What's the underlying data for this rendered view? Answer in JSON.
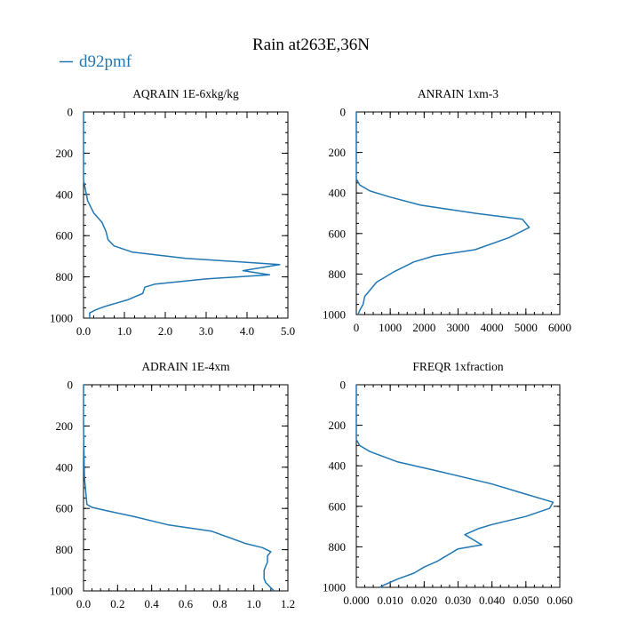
{
  "title": "Rain at263E,36N",
  "legend": {
    "label": "d92pmf",
    "color": "#1f77b4"
  },
  "colors": {
    "line": "#1f77b4",
    "axis": "#000000"
  },
  "chart_data": [
    {
      "type": "line",
      "title": "AQRAIN  1E-6xkg/kg",
      "xlim": [
        0,
        5
      ],
      "ylim": [
        1000,
        0
      ],
      "xticks": [
        0,
        1,
        2,
        3,
        4,
        5
      ],
      "xtick_labels": [
        "0.0",
        "1.0",
        "2.0",
        "3.0",
        "4.0",
        "5.0"
      ],
      "yticks": [
        0,
        200,
        400,
        600,
        800,
        1000
      ],
      "ytick_labels": [
        "0",
        "200",
        "400",
        "600",
        "800",
        "1000"
      ],
      "series": [
        {
          "name": "d92pmf",
          "points": [
            [
              0,
              0
            ],
            [
              0,
              100
            ],
            [
              0,
              250
            ],
            [
              0,
              330
            ],
            [
              0.05,
              380
            ],
            [
              0.1,
              430
            ],
            [
              0.25,
              490
            ],
            [
              0.45,
              535
            ],
            [
              0.55,
              580
            ],
            [
              0.6,
              620
            ],
            [
              0.75,
              650
            ],
            [
              1.2,
              680
            ],
            [
              2.5,
              710
            ],
            [
              4.8,
              740
            ],
            [
              3.9,
              770
            ],
            [
              4.55,
              790
            ],
            [
              3.0,
              810
            ],
            [
              1.75,
              835
            ],
            [
              1.5,
              850
            ],
            [
              1.45,
              880
            ],
            [
              1.1,
              910
            ],
            [
              0.75,
              930
            ],
            [
              0.5,
              945
            ],
            [
              0.3,
              960
            ],
            [
              0.15,
              975
            ],
            [
              0.15,
              1000
            ]
          ]
        }
      ]
    },
    {
      "type": "line",
      "title": "ANRAIN  1xm-3",
      "xlim": [
        0,
        6000
      ],
      "ylim": [
        1000,
        0
      ],
      "xticks": [
        0,
        1000,
        2000,
        3000,
        4000,
        5000,
        6000
      ],
      "xtick_labels": [
        "0",
        "1000",
        "2000",
        "3000",
        "4000",
        "5000",
        "6000"
      ],
      "yticks": [
        0,
        200,
        400,
        600,
        800,
        1000
      ],
      "ytick_labels": [
        "0",
        "200",
        "400",
        "600",
        "800",
        "1000"
      ],
      "series": [
        {
          "name": "d92pmf",
          "points": [
            [
              0,
              0
            ],
            [
              0,
              250
            ],
            [
              0,
              330
            ],
            [
              100,
              360
            ],
            [
              400,
              390
            ],
            [
              1000,
              420
            ],
            [
              1900,
              460
            ],
            [
              3500,
              500
            ],
            [
              4900,
              530
            ],
            [
              5100,
              570
            ],
            [
              4500,
              620
            ],
            [
              3500,
              680
            ],
            [
              2300,
              710
            ],
            [
              1700,
              740
            ],
            [
              1100,
              790
            ],
            [
              600,
              840
            ],
            [
              400,
              880
            ],
            [
              250,
              910
            ],
            [
              200,
              950
            ],
            [
              100,
              980
            ],
            [
              50,
              1000
            ]
          ]
        }
      ]
    },
    {
      "type": "line",
      "title": "ADRAIN  1E-4xm",
      "xlim": [
        0,
        1.2
      ],
      "ylim": [
        1000,
        0
      ],
      "xticks": [
        0,
        0.2,
        0.4,
        0.6,
        0.8,
        1.0,
        1.2
      ],
      "xtick_labels": [
        "0.0",
        "0.2",
        "0.4",
        "0.6",
        "0.8",
        "1.0",
        "1.2"
      ],
      "yticks": [
        0,
        200,
        400,
        600,
        800,
        1000
      ],
      "ytick_labels": [
        "0",
        "200",
        "400",
        "600",
        "800",
        "1000"
      ],
      "series": [
        {
          "name": "d92pmf",
          "points": [
            [
              0,
              0
            ],
            [
              0,
              200
            ],
            [
              0.005,
              450
            ],
            [
              0.02,
              580
            ],
            [
              0.05,
              595
            ],
            [
              0.13,
              610
            ],
            [
              0.3,
              640
            ],
            [
              0.5,
              680
            ],
            [
              0.75,
              710
            ],
            [
              0.95,
              770
            ],
            [
              1.05,
              790
            ],
            [
              1.1,
              810
            ],
            [
              1.08,
              830
            ],
            [
              1.08,
              860
            ],
            [
              1.06,
              900
            ],
            [
              1.06,
              940
            ],
            [
              1.07,
              960
            ],
            [
              1.1,
              985
            ],
            [
              1.12,
              1000
            ]
          ]
        }
      ]
    },
    {
      "type": "line",
      "title": "FREQR  1xfraction",
      "xlim": [
        0,
        0.06
      ],
      "ylim": [
        1000,
        0
      ],
      "xticks": [
        0,
        0.01,
        0.02,
        0.03,
        0.04,
        0.05,
        0.06
      ],
      "xtick_labels": [
        "0.000",
        "0.010",
        "0.020",
        "0.030",
        "0.040",
        "0.050",
        "0.060"
      ],
      "yticks": [
        0,
        200,
        400,
        600,
        800,
        1000
      ],
      "ytick_labels": [
        "0",
        "200",
        "400",
        "600",
        "800",
        "1000"
      ],
      "series": [
        {
          "name": "d92pmf",
          "points": [
            [
              0,
              0
            ],
            [
              0,
              270
            ],
            [
              0.001,
              300
            ],
            [
              0.004,
              330
            ],
            [
              0.012,
              380
            ],
            [
              0.025,
              430
            ],
            [
              0.04,
              490
            ],
            [
              0.05,
              540
            ],
            [
              0.058,
              580
            ],
            [
              0.057,
              610
            ],
            [
              0.05,
              650
            ],
            [
              0.04,
              690
            ],
            [
              0.036,
              710
            ],
            [
              0.032,
              740
            ],
            [
              0.035,
              770
            ],
            [
              0.037,
              790
            ],
            [
              0.03,
              810
            ],
            [
              0.026,
              850
            ],
            [
              0.024,
              870
            ],
            [
              0.02,
              900
            ],
            [
              0.017,
              930
            ],
            [
              0.012,
              960
            ],
            [
              0.01,
              975
            ],
            [
              0.008,
              990
            ],
            [
              0.007,
              1000
            ]
          ]
        }
      ]
    }
  ]
}
